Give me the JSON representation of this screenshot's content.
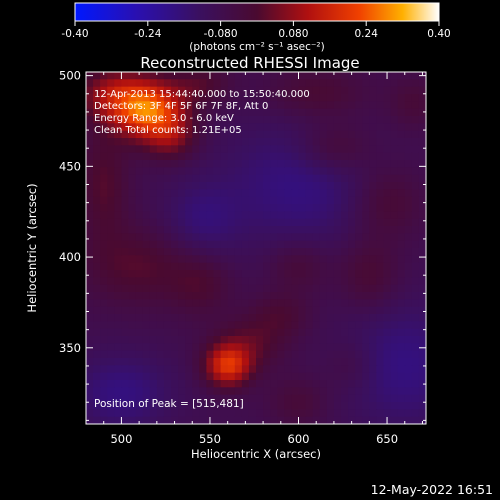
{
  "chart_data": {
    "type": "heatmap",
    "title": "Reconstructed RHESSI Image",
    "xlabel": "Heliocentric X (arcsec)",
    "ylabel": "Heliocentric Y (arcsec)",
    "xlim": [
      480,
      672
    ],
    "ylim": [
      308,
      502
    ],
    "x_ticks": [
      500,
      550,
      600,
      650
    ],
    "y_ticks": [
      350,
      400,
      450,
      500
    ],
    "colorbar": {
      "range": [
        -0.4,
        0.4
      ],
      "ticks": [
        "-0.40",
        "-0.24",
        "-0.080",
        "0.080",
        "0.24",
        "0.40"
      ],
      "label": "(photons cm⁻² s⁻¹ asec⁻²)"
    },
    "annotations": [
      "12-Apr-2013 15:44:40.000 to 15:50:40.000",
      "Detectors: 3F 4F 5F 6F 7F 8F, Att 0",
      "Energy Range: 3.0 - 6.0 keV",
      "Clean     Total counts: 1.21E+05"
    ],
    "peak_label": "Position of Peak = [515,481]",
    "peak": {
      "x": 515,
      "y": 481,
      "value": 0.4
    },
    "sources": [
      {
        "x": 515,
        "y": 481,
        "sx": 14,
        "sy": 11,
        "amp": 0.33
      },
      {
        "x": 528,
        "y": 466,
        "sx": 10,
        "sy": 9,
        "amp": 0.12
      },
      {
        "x": 495,
        "y": 490,
        "sx": 14,
        "sy": 10,
        "amp": 0.15
      },
      {
        "x": 490,
        "y": 440,
        "sx": 10,
        "sy": 22,
        "amp": 0.09
      },
      {
        "x": 510,
        "y": 395,
        "sx": 22,
        "sy": 15,
        "amp": 0.09
      },
      {
        "x": 545,
        "y": 385,
        "sx": 12,
        "sy": 12,
        "amp": 0.07
      },
      {
        "x": 560,
        "y": 340,
        "sx": 9,
        "sy": 8,
        "amp": 0.26
      },
      {
        "x": 572,
        "y": 352,
        "sx": 14,
        "sy": 10,
        "amp": 0.09
      },
      {
        "x": 590,
        "y": 368,
        "sx": 12,
        "sy": 9,
        "amp": 0.07
      },
      {
        "x": 600,
        "y": 395,
        "sx": 12,
        "sy": 10,
        "amp": 0.07
      },
      {
        "x": 640,
        "y": 390,
        "sx": 12,
        "sy": 14,
        "amp": 0.08
      },
      {
        "x": 650,
        "y": 430,
        "sx": 14,
        "sy": 14,
        "amp": 0.08
      },
      {
        "x": 620,
        "y": 460,
        "sx": 15,
        "sy": 10,
        "amp": 0.09
      },
      {
        "x": 610,
        "y": 490,
        "sx": 20,
        "sy": 10,
        "amp": 0.08
      },
      {
        "x": 665,
        "y": 485,
        "sx": 10,
        "sy": 10,
        "amp": 0.06
      },
      {
        "x": 545,
        "y": 495,
        "sx": 12,
        "sy": 8,
        "amp": 0.08
      },
      {
        "x": 600,
        "y": 320,
        "sx": 12,
        "sy": 10,
        "amp": 0.06
      },
      {
        "x": 630,
        "y": 340,
        "sx": 10,
        "sy": 10,
        "amp": 0.05
      }
    ],
    "negative_sources": [
      {
        "x": 600,
        "y": 440,
        "sx": 30,
        "sy": 25,
        "amp": -0.1
      },
      {
        "x": 660,
        "y": 340,
        "sx": 25,
        "sy": 25,
        "amp": -0.1
      },
      {
        "x": 500,
        "y": 325,
        "sx": 20,
        "sy": 15,
        "amp": -0.1
      },
      {
        "x": 545,
        "y": 420,
        "sx": 15,
        "sy": 15,
        "amp": -0.08
      }
    ],
    "baseline": -0.08
  },
  "footer": {
    "timestamp": "12-May-2022 16:51"
  },
  "colors": {
    "background": "#000000",
    "text": "#ffffff"
  }
}
